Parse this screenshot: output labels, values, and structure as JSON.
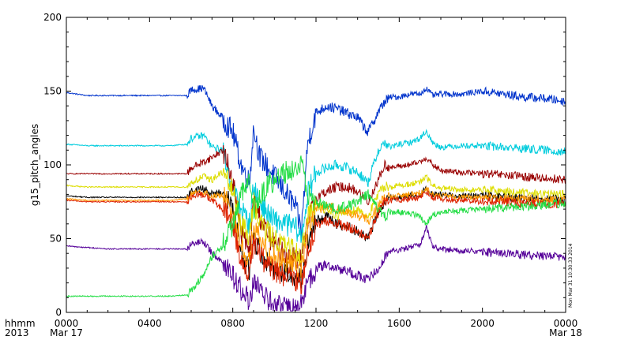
{
  "chart_data": {
    "type": "line",
    "ylabel": "g15_pitch_angles",
    "ylim": [
      0,
      200
    ],
    "y_ticks": [
      "0",
      "50",
      "100",
      "150",
      "200"
    ],
    "xlim_hours": [
      0,
      24
    ],
    "x_tick_hours": [
      0,
      4,
      8,
      12,
      16,
      20,
      24
    ],
    "x_ticks": [
      {
        "hhmm": "0000",
        "date": "Mar 17"
      },
      {
        "hhmm": "0400",
        "date": ""
      },
      {
        "hhmm": "0800",
        "date": ""
      },
      {
        "hhmm": "1200",
        "date": ""
      },
      {
        "hhmm": "1600",
        "date": ""
      },
      {
        "hhmm": "2000",
        "date": ""
      },
      {
        "hhmm": "0000",
        "date": "Mar 18"
      }
    ],
    "axis_row_labels": {
      "row1": "hhmm",
      "row2": "2013"
    },
    "timestamp": "Mon Mar 31 10:30:33 2014",
    "grid": false,
    "legend": "none",
    "series": [
      {
        "color": "#0033cc",
        "x": [
          0,
          1,
          2,
          3,
          4,
          5,
          5.8,
          6.0,
          6.6,
          7.0,
          7.5,
          8.0,
          8.4,
          8.8,
          9.0,
          9.3,
          9.6,
          10.0,
          10.5,
          11.0,
          11.3,
          11.6,
          12.0,
          12.5,
          13.0,
          13.5,
          14.0,
          14.5,
          15.0,
          15.3,
          15.6,
          16.0,
          16.5,
          17.0,
          17.3,
          17.6,
          18,
          19,
          20,
          21,
          22,
          23,
          24
        ],
        "values": [
          149,
          147,
          147,
          147,
          147,
          147,
          147,
          151,
          152,
          140,
          132,
          122,
          100,
          88,
          125,
          105,
          100,
          92,
          82,
          72,
          55,
          115,
          135,
          140,
          138,
          135,
          132,
          122,
          136,
          143,
          146,
          146,
          148,
          148,
          152,
          147,
          148,
          148,
          150,
          148,
          146,
          145,
          143
        ]
      },
      {
        "color": "#00ccdd",
        "x": [
          0,
          1,
          2,
          3,
          4,
          5,
          5.8,
          6.0,
          6.6,
          7.0,
          7.5,
          8.0,
          8.4,
          8.8,
          9.0,
          9.3,
          9.6,
          10.0,
          10.5,
          11.0,
          11.3,
          11.6,
          12.0,
          12.5,
          13.0,
          13.5,
          14.0,
          14.5,
          15.0,
          15.3,
          15.6,
          16.0,
          16.5,
          17.0,
          17.3,
          17.6,
          18,
          19,
          20,
          21,
          22,
          23,
          24
        ],
        "values": [
          114,
          113,
          113,
          113,
          113,
          113,
          114,
          118,
          120,
          112,
          110,
          85,
          70,
          60,
          85,
          75,
          68,
          62,
          60,
          58,
          50,
          80,
          95,
          98,
          100,
          98,
          95,
          88,
          110,
          115,
          112,
          114,
          115,
          118,
          123,
          115,
          112,
          113,
          113,
          112,
          111,
          110,
          109
        ]
      },
      {
        "color": "#990000",
        "x": [
          0,
          1,
          2,
          3,
          4,
          5,
          5.8,
          6.0,
          6.6,
          7.0,
          7.5,
          8.0,
          8.4,
          8.8,
          9.0,
          9.3,
          9.6,
          10.0,
          10.5,
          11.0,
          11.3,
          11.6,
          12.0,
          12.5,
          13.0,
          13.5,
          14.0,
          14.5,
          15.0,
          15.3,
          15.6,
          16.0,
          16.5,
          17.0,
          17.3,
          17.6,
          18,
          19,
          20,
          21,
          22,
          23,
          24
        ],
        "values": [
          94,
          94,
          94,
          94,
          94,
          94,
          94,
          98,
          102,
          105,
          110,
          90,
          55,
          40,
          75,
          65,
          55,
          45,
          40,
          38,
          35,
          60,
          78,
          82,
          85,
          85,
          82,
          75,
          90,
          100,
          98,
          99,
          100,
          102,
          105,
          100,
          96,
          95,
          94,
          93,
          92,
          91,
          90
        ]
      },
      {
        "color": "#dddd00",
        "x": [
          0,
          1,
          2,
          3,
          4,
          5,
          5.8,
          6.0,
          6.6,
          7.0,
          7.5,
          8.0,
          8.4,
          8.8,
          9.0,
          9.3,
          9.6,
          10.0,
          10.5,
          11.0,
          11.3,
          11.6,
          12.0,
          12.5,
          13.0,
          13.5,
          14.0,
          14.5,
          15.0,
          15.3,
          15.6,
          16.0,
          16.5,
          17.0,
          17.3,
          17.6,
          18,
          19,
          20,
          21,
          22,
          23,
          24
        ],
        "values": [
          86,
          85,
          85,
          85,
          85,
          85,
          85,
          88,
          92,
          90,
          95,
          82,
          60,
          50,
          75,
          62,
          55,
          50,
          45,
          42,
          40,
          65,
          72,
          70,
          66,
          68,
          70,
          65,
          80,
          86,
          85,
          86,
          87,
          88,
          92,
          86,
          84,
          83,
          83,
          82,
          81,
          80,
          80
        ]
      },
      {
        "color": "#000000",
        "x": [
          0,
          1,
          2,
          3,
          4,
          5,
          5.8,
          6.0,
          6.6,
          7.0,
          7.5,
          8.0,
          8.4,
          8.8,
          9.0,
          9.3,
          9.6,
          10.0,
          10.5,
          11.0,
          11.3,
          11.6,
          12.0,
          12.5,
          13.0,
          13.5,
          14.0,
          14.5,
          15.0,
          15.3,
          15.6,
          16.0,
          16.5,
          17.0,
          17.3,
          17.6,
          18,
          19,
          20,
          21,
          22,
          23,
          24
        ],
        "values": [
          79,
          78,
          78,
          78,
          78,
          78,
          78,
          82,
          84,
          80,
          82,
          70,
          40,
          28,
          50,
          42,
          35,
          30,
          28,
          25,
          22,
          45,
          62,
          65,
          60,
          58,
          55,
          50,
          68,
          75,
          78,
          78,
          79,
          80,
          84,
          80,
          80,
          79,
          79,
          78,
          77,
          77,
          76
        ]
      },
      {
        "color": "#ff9900",
        "x": [
          0,
          1,
          2,
          3,
          4,
          5,
          5.8,
          6.0,
          6.6,
          7.0,
          7.5,
          8.0,
          8.4,
          8.8,
          9.0,
          9.3,
          9.6,
          10.0,
          10.5,
          11.0,
          11.3,
          11.6,
          12.0,
          12.5,
          13.0,
          13.5,
          14.0,
          14.5,
          15.0,
          15.3,
          15.6,
          16.0,
          16.5,
          17.0,
          17.3,
          17.6,
          18,
          19,
          20,
          21,
          22,
          23,
          24
        ],
        "values": [
          77,
          76,
          76,
          76,
          76,
          76,
          77,
          80,
          82,
          78,
          80,
          68,
          45,
          35,
          58,
          48,
          42,
          38,
          35,
          33,
          30,
          55,
          70,
          72,
          70,
          68,
          66,
          62,
          72,
          78,
          78,
          79,
          80,
          81,
          84,
          80,
          79,
          78,
          78,
          77,
          77,
          76,
          76
        ]
      },
      {
        "color": "#dd2200",
        "x": [
          0,
          1,
          2,
          3,
          4,
          5,
          5.8,
          6.0,
          6.6,
          7.0,
          7.5,
          8.0,
          8.4,
          8.8,
          9.0,
          9.3,
          9.6,
          10.0,
          10.5,
          11.0,
          11.3,
          11.6,
          12.0,
          12.5,
          13.0,
          13.5,
          14.0,
          14.5,
          15.0,
          15.3,
          15.6,
          16.0,
          16.5,
          17.0,
          17.3,
          17.6,
          18,
          19,
          20,
          21,
          22,
          23,
          24
        ],
        "values": [
          76,
          75,
          75,
          75,
          75,
          75,
          75,
          78,
          80,
          76,
          70,
          60,
          35,
          25,
          48,
          40,
          32,
          28,
          25,
          22,
          20,
          42,
          58,
          62,
          60,
          58,
          55,
          50,
          68,
          75,
          76,
          76,
          77,
          78,
          82,
          78,
          77,
          76,
          75,
          75,
          74,
          74,
          73
        ]
      },
      {
        "color": "#550099",
        "x": [
          0,
          1,
          2,
          3,
          4,
          5,
          5.8,
          6.0,
          6.6,
          7.0,
          7.5,
          8.0,
          8.4,
          8.8,
          9.0,
          9.3,
          9.6,
          10.0,
          10.5,
          11.0,
          11.3,
          11.6,
          12.0,
          12.5,
          13.0,
          13.5,
          14.0,
          14.5,
          15.0,
          15.3,
          15.6,
          16.0,
          16.5,
          17.0,
          17.3,
          17.6,
          18,
          19,
          20,
          21,
          22,
          23,
          24
        ],
        "values": [
          45,
          44,
          43,
          43,
          43,
          43,
          43,
          46,
          48,
          40,
          35,
          25,
          15,
          8,
          20,
          15,
          10,
          5,
          3,
          2,
          5,
          20,
          30,
          32,
          30,
          28,
          25,
          22,
          30,
          38,
          42,
          42,
          44,
          46,
          58,
          45,
          43,
          42,
          41,
          40,
          39,
          38,
          38
        ]
      },
      {
        "color": "#22dd44",
        "x": [
          0,
          1,
          2,
          3,
          4,
          5,
          5.8,
          6.0,
          6.6,
          7.0,
          7.5,
          8.0,
          8.4,
          8.8,
          9.0,
          9.3,
          9.6,
          10.0,
          10.5,
          11.0,
          11.3,
          11.6,
          12.0,
          12.5,
          13.0,
          13.5,
          14.0,
          14.5,
          15.0,
          15.3,
          15.6,
          16.0,
          16.5,
          17.0,
          17.3,
          17.6,
          18,
          19,
          20,
          21,
          22,
          23,
          24
        ],
        "values": [
          11,
          11,
          11,
          11,
          11,
          11,
          12,
          15,
          25,
          38,
          45,
          60,
          80,
          88,
          70,
          78,
          85,
          90,
          95,
          98,
          100,
          80,
          75,
          72,
          70,
          72,
          75,
          80,
          70,
          65,
          68,
          68,
          67,
          65,
          60,
          66,
          68,
          69,
          70,
          71,
          72,
          73,
          74
        ],
        "note_invert": true
      }
    ]
  }
}
